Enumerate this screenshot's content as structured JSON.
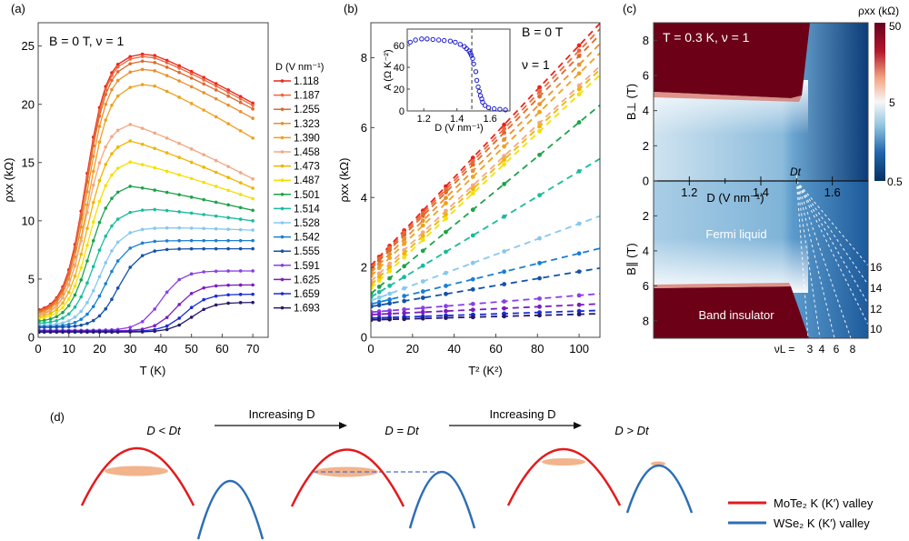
{
  "panel_labels": {
    "a": "(a)",
    "b": "(b)",
    "c": "(c)",
    "d": "(d)"
  },
  "chart_data": [
    {
      "id": "a",
      "type": "line",
      "annotation": "B = 0 T, ν = 1",
      "xlabel": "T (K)",
      "ylabel": "ρxx (kΩ)",
      "xlim": [
        0,
        75
      ],
      "ylim": [
        0,
        27
      ],
      "xticks": [
        0,
        10,
        20,
        30,
        40,
        50,
        60,
        70
      ],
      "yticks": [
        0,
        5,
        10,
        15,
        20,
        25
      ],
      "legend_title": "D (V nm⁻¹)",
      "legend_position": "right-outside",
      "x": [
        0.3,
        2,
        4,
        6,
        8,
        10,
        12,
        14,
        16,
        18,
        20,
        22,
        24,
        26,
        30,
        34,
        38,
        42,
        46,
        50,
        54,
        58,
        62,
        66,
        70
      ],
      "series": [
        {
          "name": "1.118",
          "color": "#e8261c",
          "peak_T": 36,
          "peak": 24.4,
          "end": 20.1,
          "start": 2.1,
          "knee": 15.5
        },
        {
          "name": "1.187",
          "color": "#f0663c",
          "peak_T": 36,
          "peak": 24.2,
          "end": 19.9,
          "start": 2.0,
          "knee": 15.6
        },
        {
          "name": "1.255",
          "color": "#de6a2a",
          "peak_T": 36,
          "peak": 23.8,
          "end": 19.6,
          "start": 1.95,
          "knee": 15.7
        },
        {
          "name": "1.323",
          "color": "#e8902e",
          "peak_T": 36,
          "peak": 23.1,
          "end": 18.8,
          "start": 1.9,
          "knee": 16.0
        },
        {
          "name": "1.390",
          "color": "#f0a020",
          "peak_T": 36,
          "peak": 21.8,
          "end": 17.1,
          "start": 1.8,
          "knee": 16.3
        },
        {
          "name": "1.458",
          "color": "#f2a882",
          "peak_T": 30,
          "peak": 18.5,
          "end": 13.6,
          "start": 1.7,
          "knee": 15.5
        },
        {
          "name": "1.473",
          "color": "#f0b400",
          "peak_T": 30,
          "peak": 17.1,
          "end": 12.8,
          "start": 1.6,
          "knee": 16.0
        },
        {
          "name": "1.487",
          "color": "#f5e000",
          "peak_T": 30,
          "peak": 15.3,
          "end": 11.9,
          "start": 1.5,
          "knee": 16.5
        },
        {
          "name": "1.501",
          "color": "#1ea34a",
          "peak_T": 30,
          "peak": 13.2,
          "end": 10.9,
          "start": 1.3,
          "knee": 16.8
        },
        {
          "name": "1.514",
          "color": "#1abc9c",
          "peak_T": 38,
          "peak": 11.0,
          "end": 10.0,
          "start": 1.15,
          "knee": 18.0
        },
        {
          "name": "1.528",
          "color": "#86c8ee",
          "peak_T": 46,
          "peak": 9.4,
          "end": 9.2,
          "start": 1.0,
          "knee": 20.0
        },
        {
          "name": "1.542",
          "color": "#1a7fd4",
          "peak_T": 60,
          "peak": 8.3,
          "end": 8.3,
          "start": 0.9,
          "knee": 22.0
        },
        {
          "name": "1.555",
          "color": "#1452a8",
          "peak_T": 70,
          "peak": 7.6,
          "end": 7.6,
          "start": 0.85,
          "knee": 26.0
        },
        {
          "name": "1.591",
          "color": "#8a3ee8",
          "peak_T": 70,
          "peak": 5.7,
          "end": 5.7,
          "start": 0.6,
          "knee": 40.0
        },
        {
          "name": "1.625",
          "color": "#7a1cc0",
          "peak_T": 70,
          "peak": 4.5,
          "end": 4.5,
          "start": 0.55,
          "knee": 45.0
        },
        {
          "name": "1.659",
          "color": "#1a2ad8",
          "peak_T": 70,
          "peak": 3.7,
          "end": 3.7,
          "start": 0.5,
          "knee": 48.0
        },
        {
          "name": "1.693",
          "color": "#241a6a",
          "peak_T": 70,
          "peak": 3.0,
          "end": 3.0,
          "start": 0.45,
          "knee": 50.0
        }
      ]
    },
    {
      "id": "b",
      "type": "scatter",
      "annotation_1": "B = 0 T",
      "annotation_2": "ν = 1",
      "xlabel": "T² (K²)",
      "ylabel": "ρxx (kΩ)",
      "xlim": [
        0,
        110
      ],
      "ylim": [
        0,
        9
      ],
      "xticks": [
        0,
        20,
        40,
        60,
        80,
        100
      ],
      "yticks": [
        0,
        2,
        4,
        6,
        8
      ],
      "x": [
        0.09,
        4,
        9,
        16,
        25,
        36,
        49,
        64,
        81,
        100
      ],
      "fits": "dashed linear ρ = ρ0 + A·T²",
      "series": [
        {
          "name": "1.118",
          "color": "#e8261c",
          "intercept": 2.05,
          "slope": 0.063
        },
        {
          "name": "1.187",
          "color": "#f0663c",
          "intercept": 2.0,
          "slope": 0.062
        },
        {
          "name": "1.255",
          "color": "#de6a2a",
          "intercept": 1.95,
          "slope": 0.061
        },
        {
          "name": "1.323",
          "color": "#e8902e",
          "intercept": 1.85,
          "slope": 0.0595
        },
        {
          "name": "1.390",
          "color": "#f0a020",
          "intercept": 1.75,
          "slope": 0.058
        },
        {
          "name": "1.458",
          "color": "#f2a882",
          "intercept": 1.6,
          "slope": 0.056
        },
        {
          "name": "1.473",
          "color": "#f0b400",
          "intercept": 1.5,
          "slope": 0.056
        },
        {
          "name": "1.487",
          "color": "#f5e000",
          "intercept": 1.4,
          "slope": 0.0555
        },
        {
          "name": "1.501",
          "color": "#1ea34a",
          "intercept": 1.25,
          "slope": 0.049
        },
        {
          "name": "1.514",
          "color": "#1abc9c",
          "intercept": 1.15,
          "slope": 0.036
        },
        {
          "name": "1.528",
          "color": "#86c8ee",
          "intercept": 1.05,
          "slope": 0.022
        },
        {
          "name": "1.542",
          "color": "#1a7fd4",
          "intercept": 0.95,
          "slope": 0.0145
        },
        {
          "name": "1.555",
          "color": "#1452a8",
          "intercept": 0.88,
          "slope": 0.01
        },
        {
          "name": "1.591",
          "color": "#8a3ee8",
          "intercept": 0.72,
          "slope": 0.0048
        },
        {
          "name": "1.625",
          "color": "#7a1cc0",
          "intercept": 0.65,
          "slope": 0.0028
        },
        {
          "name": "1.659",
          "color": "#1a2ad8",
          "intercept": 0.55,
          "slope": 0.002
        },
        {
          "name": "1.693",
          "color": "#241a6a",
          "intercept": 0.5,
          "slope": 0.0016
        }
      ],
      "inset": {
        "type": "scatter",
        "xlabel": "D (V nm⁻¹)",
        "ylabel": "A (Ω K⁻²)",
        "xlim": [
          1.1,
          1.72
        ],
        "ylim": [
          0,
          75
        ],
        "xticks": [
          1.2,
          1.4,
          1.6
        ],
        "yticks": [
          0,
          20,
          40,
          60
        ],
        "vline_x": 1.49,
        "marker_color": "#1a1ad0",
        "points": [
          [
            1.118,
            63
          ],
          [
            1.15,
            65
          ],
          [
            1.187,
            66
          ],
          [
            1.22,
            66
          ],
          [
            1.255,
            65.5
          ],
          [
            1.29,
            65
          ],
          [
            1.323,
            64.5
          ],
          [
            1.36,
            64
          ],
          [
            1.39,
            63
          ],
          [
            1.42,
            61
          ],
          [
            1.445,
            59
          ],
          [
            1.458,
            57
          ],
          [
            1.473,
            55
          ],
          [
            1.48,
            53
          ],
          [
            1.487,
            51
          ],
          [
            1.495,
            48
          ],
          [
            1.501,
            43
          ],
          [
            1.514,
            36
          ],
          [
            1.52,
            28
          ],
          [
            1.528,
            22
          ],
          [
            1.535,
            18
          ],
          [
            1.542,
            14
          ],
          [
            1.55,
            11
          ],
          [
            1.555,
            8
          ],
          [
            1.57,
            5
          ],
          [
            1.591,
            3
          ],
          [
            1.625,
            2
          ],
          [
            1.659,
            1.5
          ],
          [
            1.693,
            1
          ]
        ]
      }
    },
    {
      "id": "c",
      "type": "heatmap",
      "annotation": "T = 0.3 K, ν = 1",
      "xlabel": "D (V nm⁻¹)",
      "ylabel_top": "B⊥ (T)",
      "ylabel_bottom": "B∥ (T)",
      "xlim": [
        1.1,
        1.7
      ],
      "xticks": [
        1.2,
        1.4,
        1.6
      ],
      "ylim_top": [
        0,
        9
      ],
      "ylim_bottom": [
        0,
        9
      ],
      "yticks": [
        0,
        2,
        4,
        6,
        8
      ],
      "colorbar_label": "ρxx (kΩ)",
      "colorbar_ticks": [
        "50",
        "5",
        "0.5"
      ],
      "colorbar_scale": "log",
      "Dt_label": "Dt",
      "Dt": 1.5,
      "region_labels": [
        "Fermi liquid",
        "Band insulator"
      ],
      "landau_levels_label": "νL =",
      "landau_bottom": [
        "3",
        "4",
        "6",
        "8"
      ],
      "landau_right": [
        "10",
        "12",
        "14",
        "16"
      ]
    }
  ],
  "schematic": {
    "transitions": [
      "Increasing D",
      "Increasing D"
    ],
    "states": [
      "D < Dt",
      "D = Dt",
      "D > Dt"
    ],
    "legend": [
      {
        "label": "MoTe₂ K (K′) valley",
        "color": "#e41a1c"
      },
      {
        "label": "WSe₂ K (K′) valley",
        "color": "#2e6eb5"
      }
    ],
    "fill_color": "#f2b48c"
  }
}
